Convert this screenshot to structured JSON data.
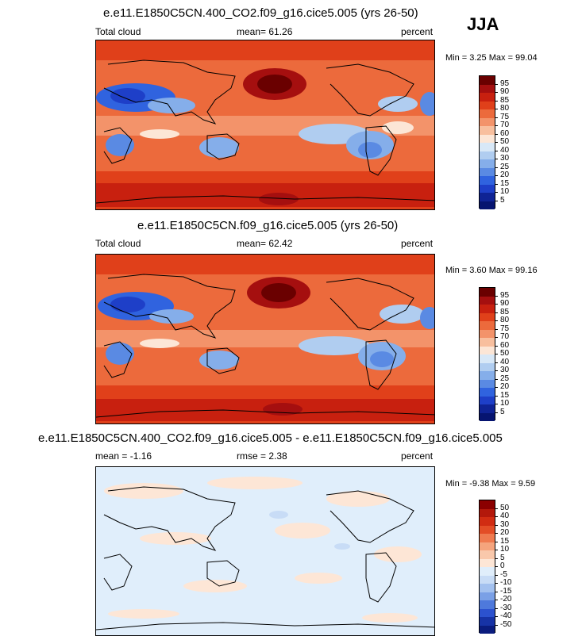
{
  "season": "JJA",
  "panels": [
    {
      "title": "e.e11.E1850C5CN.400_CO2.f09_g16.cice5.005 (yrs 26-50)",
      "left_label": "Total cloud",
      "center_label": "mean=  61.26",
      "right_label": "percent",
      "minmax": "Min =   3.25 Max =  99.04",
      "colorbar_labels": [
        "95",
        "90",
        "85",
        "80",
        "75",
        "70",
        "60",
        "50",
        "40",
        "30",
        "25",
        "20",
        "15",
        "10",
        "5"
      ]
    },
    {
      "title": "e.e11.E1850C5CN.f09_g16.cice5.005 (yrs 26-50)",
      "left_label": "Total cloud",
      "center_label": "mean=  62.42",
      "right_label": "percent",
      "minmax": "Min =   3.60 Max =  99.16",
      "colorbar_labels": [
        "95",
        "90",
        "85",
        "80",
        "75",
        "70",
        "60",
        "50",
        "40",
        "30",
        "25",
        "20",
        "15",
        "10",
        "5"
      ]
    },
    {
      "title": "e.e11.E1850C5CN.400_CO2.f09_g16.cice5.005 - e.e11.E1850C5CN.f09_g16.cice5.005",
      "left_label": "mean =  -1.16",
      "center_label": "rmse =   2.38",
      "right_label": "percent",
      "minmax": "Min =  -9.38 Max =   9.59",
      "colorbar_labels": [
        "50",
        "40",
        "30",
        "20",
        "15",
        "10",
        "5",
        "0",
        "-5",
        "-10",
        "-15",
        "-20",
        "-30",
        "-40",
        "-50"
      ]
    }
  ],
  "colors": {
    "abs_scale": [
      "#6a0000",
      "#a50f0f",
      "#c8200f",
      "#e0401a",
      "#ec6a3c",
      "#f3936a",
      "#f8bf9e",
      "#fce6d6",
      "#d8e8f7",
      "#b0cdf0",
      "#85aeea",
      "#5a8ae3",
      "#3063df",
      "#1e3fc8",
      "#0f2395",
      "#061470"
    ],
    "diff_scale": [
      "#8b0000",
      "#b3180b",
      "#d12c12",
      "#e34d26",
      "#ef7a4f",
      "#f5a47d",
      "#f9c8ab",
      "#fde6d6",
      "#e0eefb",
      "#c8dcf6",
      "#a3c1ef",
      "#7aa0e6",
      "#4e79dc",
      "#2c52cf",
      "#1733a6",
      "#0a1c7e"
    ]
  }
}
